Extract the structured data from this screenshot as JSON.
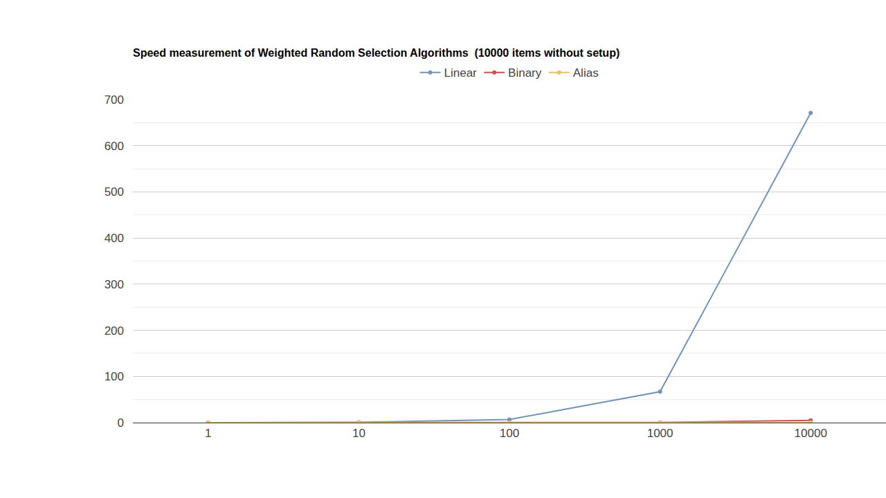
{
  "chart_data": {
    "type": "line",
    "title": "Speed measurement of Weighted Random Selection Algorithms  (10000 items without setup)",
    "categories": [
      "1",
      "10",
      "100",
      "1000",
      "10000"
    ],
    "series": [
      {
        "name": "Linear",
        "color": "#7193b8",
        "values": [
          0.07,
          0.7,
          6.7,
          67,
          671
        ]
      },
      {
        "name": "Binary",
        "color": "#c9504f",
        "values": [
          0.06,
          0.12,
          0.25,
          0.5,
          4.7
        ]
      },
      {
        "name": "Alias",
        "color": "#e8bf6d",
        "values": [
          0.05,
          0.05,
          0.05,
          0.06,
          0.5
        ]
      }
    ],
    "ylim": [
      0,
      700
    ],
    "yticks": [
      0,
      100,
      200,
      300,
      400,
      500,
      600,
      700
    ],
    "grid": true,
    "legend": "top",
    "marker": "circle"
  }
}
